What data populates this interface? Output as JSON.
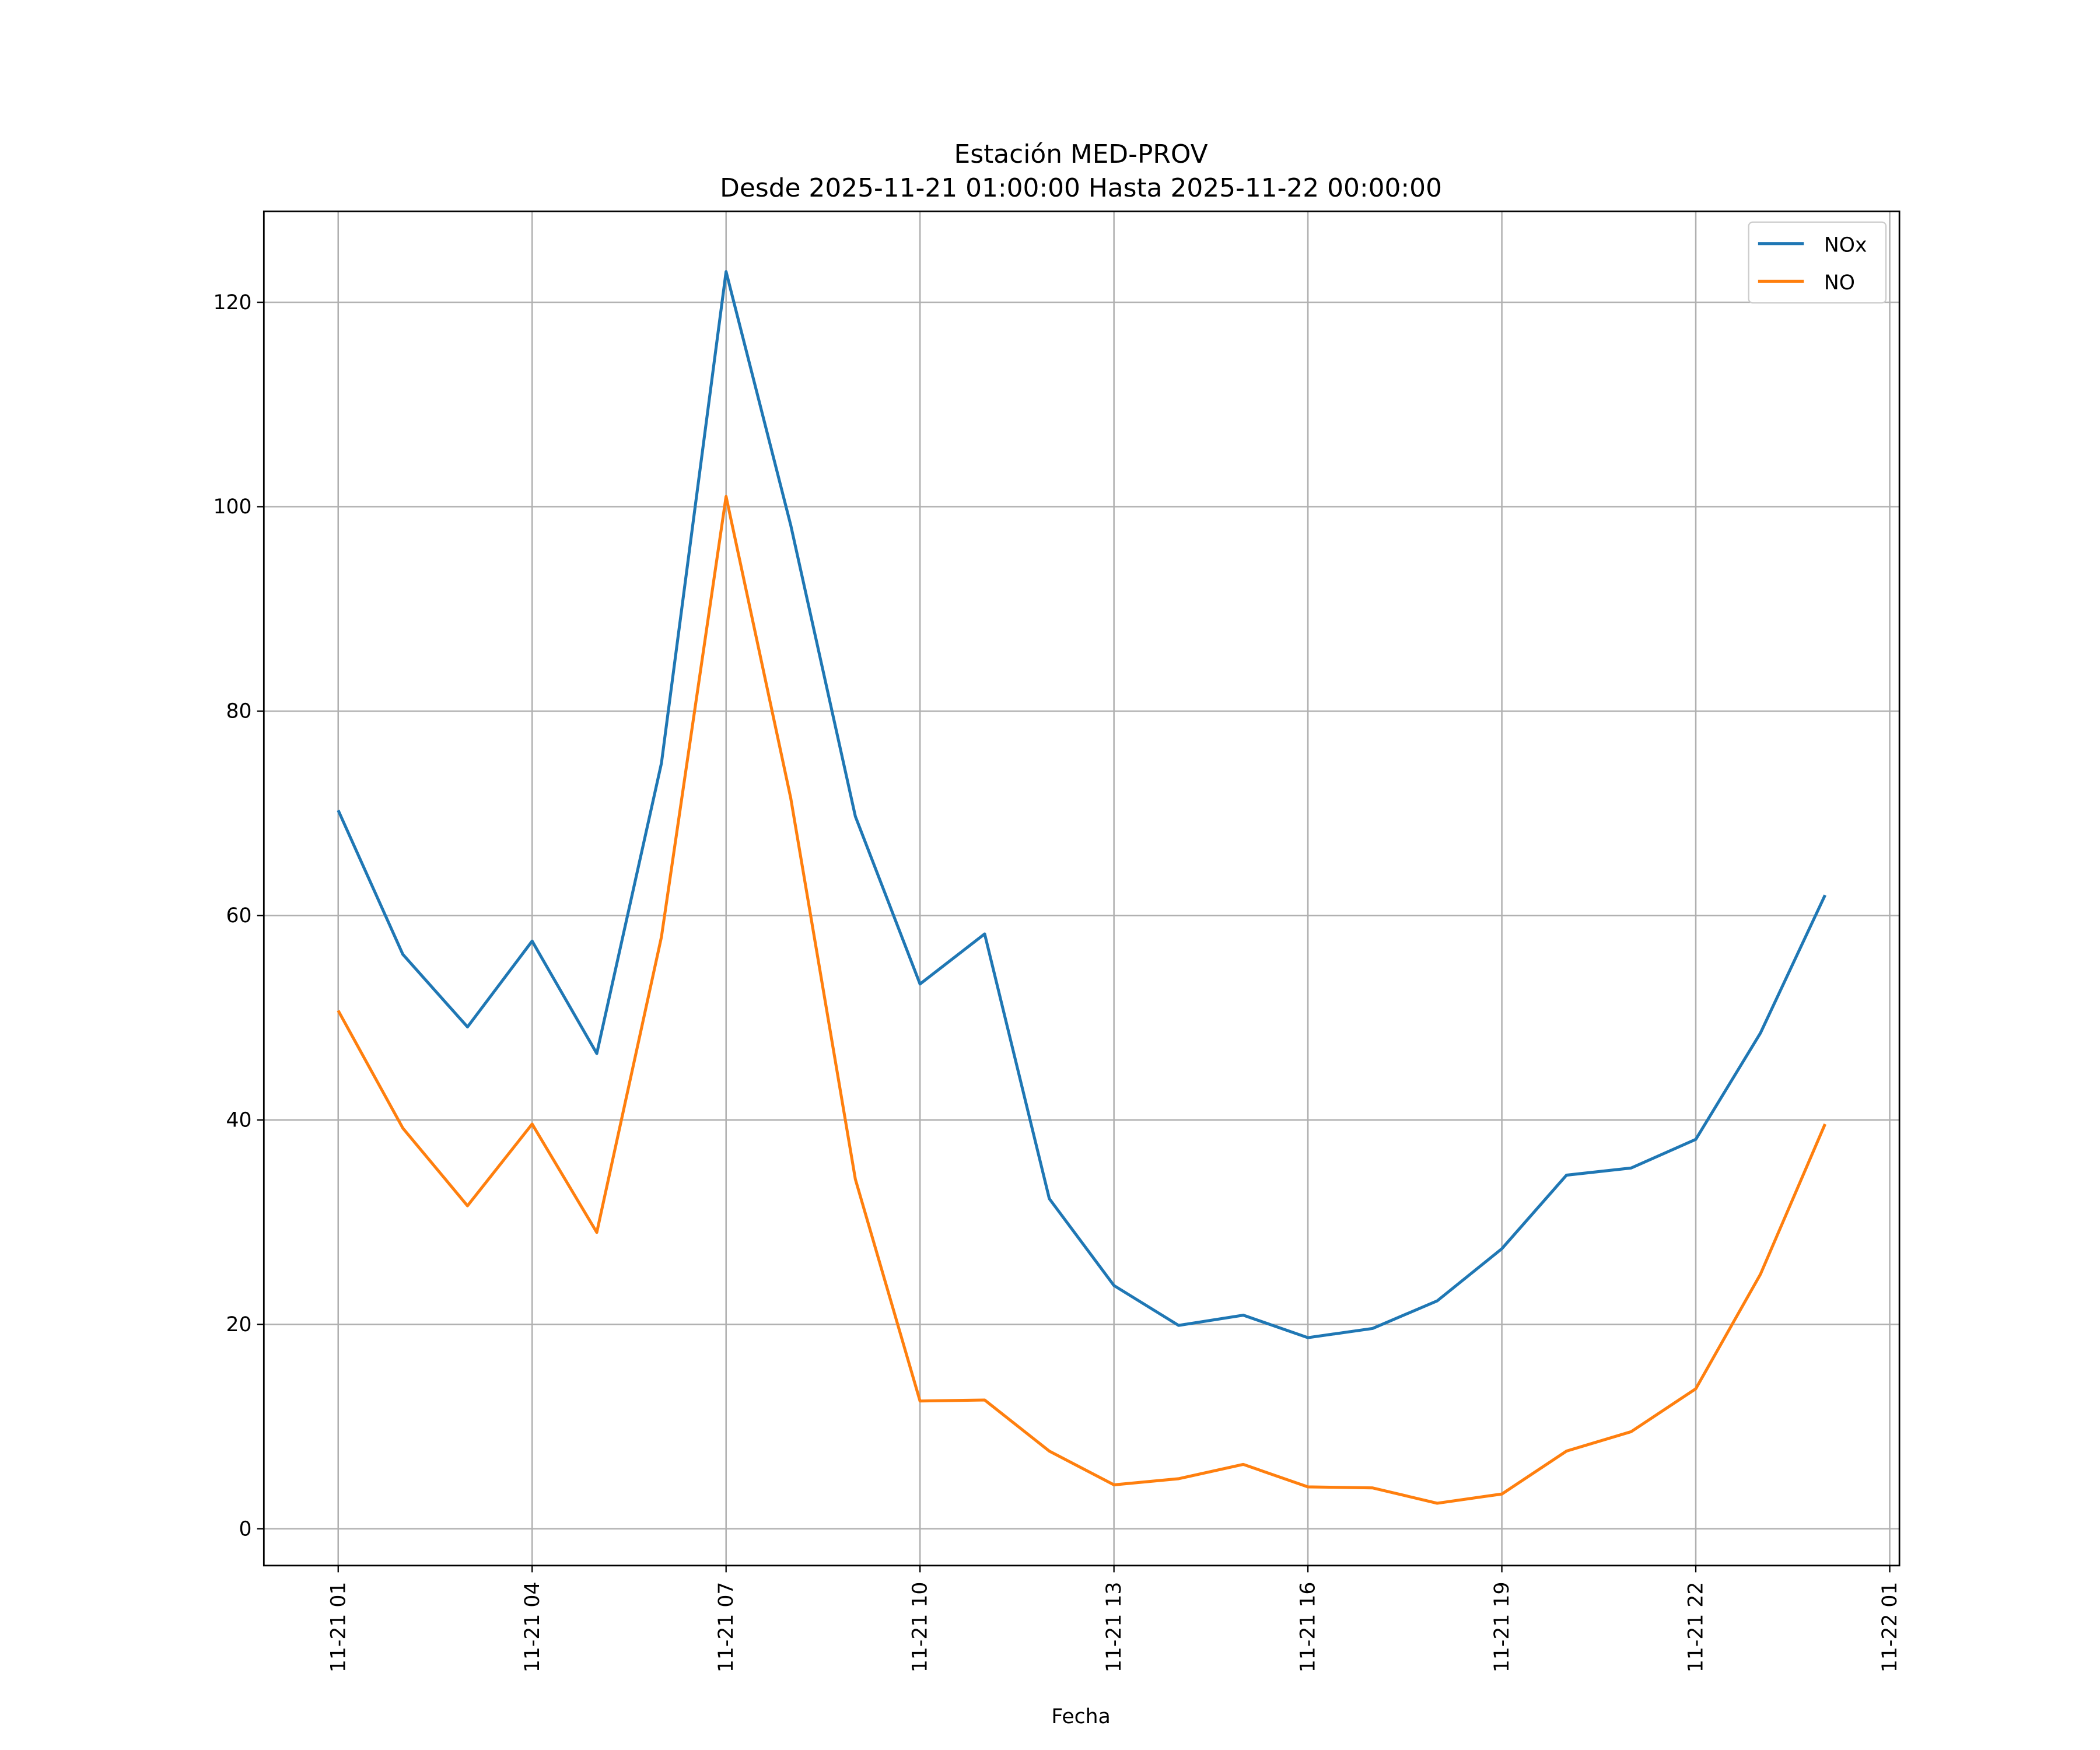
{
  "chart_data": {
    "type": "line",
    "title": "Estación MED-PROV",
    "subtitle": "Desde 2025-11-21 01:00:00 Hasta 2025-11-22 00:00:00",
    "xlabel": "Fecha",
    "ylabel": "",
    "x_hours": [
      1,
      2,
      3,
      4,
      5,
      6,
      7,
      8,
      9,
      10,
      11,
      12,
      13,
      14,
      15,
      16,
      17,
      18,
      19,
      20,
      21,
      22,
      23,
      24
    ],
    "xlim": [
      -0.15,
      25.15
    ],
    "ylim": [
      -3.6,
      128.9
    ],
    "x_ticks": [
      {
        "value": 1,
        "label": "11-21 01"
      },
      {
        "value": 4,
        "label": "11-21 04"
      },
      {
        "value": 7,
        "label": "11-21 07"
      },
      {
        "value": 10,
        "label": "11-21 10"
      },
      {
        "value": 13,
        "label": "11-21 13"
      },
      {
        "value": 16,
        "label": "11-21 16"
      },
      {
        "value": 19,
        "label": "11-21 19"
      },
      {
        "value": 22,
        "label": "11-21 22"
      },
      {
        "value": 25,
        "label": "11-22 01"
      }
    ],
    "y_ticks": [
      {
        "value": 0,
        "label": "0"
      },
      {
        "value": 20,
        "label": "20"
      },
      {
        "value": 40,
        "label": "40"
      },
      {
        "value": 60,
        "label": "60"
      },
      {
        "value": 80,
        "label": "80"
      },
      {
        "value": 100,
        "label": "100"
      },
      {
        "value": 120,
        "label": "120"
      }
    ],
    "grid": true,
    "legend_position": "top-right",
    "series": [
      {
        "name": "NOx",
        "color": "#1f77b4",
        "values": [
          70.3,
          56.2,
          49.1,
          57.5,
          46.5,
          74.9,
          123.0,
          98.2,
          69.7,
          53.3,
          58.2,
          32.3,
          23.8,
          19.9,
          20.9,
          18.7,
          19.6,
          22.3,
          27.4,
          34.6,
          35.3,
          38.1,
          48.5,
          62.0
        ]
      },
      {
        "name": "NO",
        "color": "#ff7f0e",
        "values": [
          50.7,
          39.2,
          31.6,
          39.6,
          29.0,
          57.9,
          101.0,
          71.5,
          34.2,
          12.5,
          12.6,
          7.6,
          4.3,
          4.9,
          6.3,
          4.1,
          4.0,
          2.5,
          3.4,
          7.6,
          9.5,
          13.7,
          24.9,
          39.6
        ]
      }
    ]
  }
}
